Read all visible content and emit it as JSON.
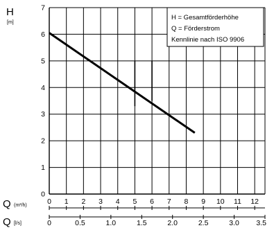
{
  "chart_data": {
    "type": "line",
    "y_axis": {
      "label": "H",
      "unit": "[m]",
      "ylim": [
        0,
        7
      ],
      "ticks": [
        0,
        1,
        2,
        3,
        4,
        5,
        6,
        7
      ]
    },
    "x_axis": {
      "label": "Q",
      "unit": "(m³/h)",
      "xlim": [
        0,
        12.6
      ],
      "ticks": [
        0,
        1,
        2,
        3,
        4,
        5,
        6,
        7,
        8,
        9,
        10,
        11,
        12
      ]
    },
    "x_axis_secondary": {
      "label": "Q",
      "unit": "[l/s]",
      "tick_labels": [
        "0",
        "0.5",
        "1.0",
        "1.5",
        "2.0",
        "2.5",
        "3.0",
        "3.5"
      ],
      "tick_values_m3h": [
        0,
        1.8,
        3.6,
        5.4,
        7.2,
        9.0,
        10.8,
        12.6
      ]
    },
    "grid": true,
    "legend_position": "top-right",
    "legend_lines": [
      "H = Gesamtförderhöhe",
      "Q = Förderstrom",
      "Kennlinie nach ISO 9906"
    ],
    "series": [
      {
        "x": [
          0,
          8.5
        ],
        "y": [
          6.05,
          2.3
        ]
      }
    ],
    "operating_range_markers": [
      {
        "x": 5.0,
        "y_from": 3.3,
        "y_to": 5.0
      },
      {
        "x": 6.0,
        "y_from": 3.5,
        "y_to": 5.0
      }
    ]
  }
}
